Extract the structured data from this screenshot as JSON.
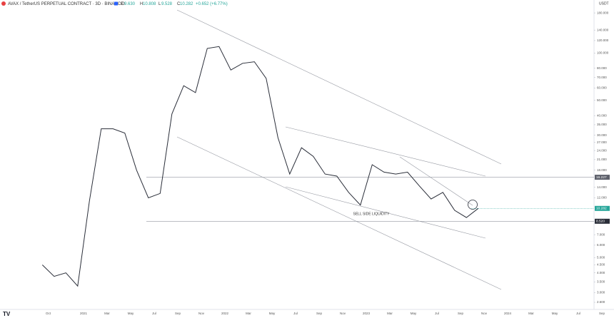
{
  "chart_data": {
    "type": "line",
    "symbol": "AVAX / TetherUS PERPETUAL CONTRACT · 3D · BINANCE",
    "ohlc": [
      {
        "label": "O",
        "value": "9.630"
      },
      {
        "label": "H",
        "value": "10.808"
      },
      {
        "label": "L",
        "value": "9.528"
      },
      {
        "label": "C",
        "value": "10.282"
      }
    ],
    "change": "+0.652 (+6.77%)",
    "currency": "USDT",
    "annotation": "SELL SIDE LIQUIDITY",
    "log_scale": true,
    "x": [
      "2020-09",
      "2020-10",
      "2020-11",
      "2020-12",
      "2021-01",
      "2021-02",
      "2021-03",
      "2021-04",
      "2021-05",
      "2021-06",
      "2021-07",
      "2021-08",
      "2021-09",
      "2021-10",
      "2021-11",
      "2021-12",
      "2022-01",
      "2022-02",
      "2022-03",
      "2022-04",
      "2022-05",
      "2022-06",
      "2022-07",
      "2022-08",
      "2022-09",
      "2022-10",
      "2022-11",
      "2022-12",
      "2023-01",
      "2023-02",
      "2023-03",
      "2023-04",
      "2023-05",
      "2023-06",
      "2023-07",
      "2023-08",
      "2023-09",
      "2023-10"
    ],
    "series": [
      {
        "name": "AVAX",
        "color": "#2a2e39",
        "values": [
          4.5,
          3.8,
          4.0,
          3.3,
          11.5,
          33,
          33,
          31,
          18,
          12,
          12.8,
          41,
          62,
          56,
          107,
          110,
          78,
          86,
          88,
          69,
          29,
          17,
          25,
          22,
          17,
          16.5,
          13,
          10.8,
          19.5,
          17.5,
          17,
          17.5,
          14.3,
          11.8,
          13,
          10,
          9.0,
          10.282
        ]
      }
    ],
    "ylim": [
      2.2,
      200
    ],
    "yticks": [
      {
        "value": 180,
        "label": "180.000"
      },
      {
        "value": 140,
        "label": "140.000"
      },
      {
        "value": 120,
        "label": "120.000"
      },
      {
        "value": 100,
        "label": "100.000"
      },
      {
        "value": 80,
        "label": "80.000"
      },
      {
        "value": 70,
        "label": "70.000"
      },
      {
        "value": 60,
        "label": "60.000"
      },
      {
        "value": 50,
        "label": "50.000"
      },
      {
        "value": 40,
        "label": "40.000"
      },
      {
        "value": 35,
        "label": "35.000"
      },
      {
        "value": 30,
        "label": "30.000"
      },
      {
        "value": 27,
        "label": "27.000"
      },
      {
        "value": 24,
        "label": "24.000"
      },
      {
        "value": 21,
        "label": "21.000"
      },
      {
        "value": 18,
        "label": "18.000"
      },
      {
        "value": 14,
        "label": "14.000"
      },
      {
        "value": 12,
        "label": "12.000"
      },
      {
        "value": 7,
        "label": "7.000"
      },
      {
        "value": 6,
        "label": "6.000"
      },
      {
        "value": 5,
        "label": "5.000"
      },
      {
        "value": 4.5,
        "label": "4.500"
      },
      {
        "value": 4,
        "label": "4.000"
      },
      {
        "value": 3.5,
        "label": "3.500"
      },
      {
        "value": 3,
        "label": "3.000"
      },
      {
        "value": 2.6,
        "label": "2.600"
      }
    ],
    "xticks": [
      {
        "value": "2020-10",
        "label": "Oct"
      },
      {
        "value": "2021-01",
        "label": "2021"
      },
      {
        "value": "2021-03",
        "label": "Mar"
      },
      {
        "value": "2021-05",
        "label": "May"
      },
      {
        "value": "2021-07",
        "label": "Jul"
      },
      {
        "value": "2021-09",
        "label": "Sep"
      },
      {
        "value": "2021-11",
        "label": "Nov"
      },
      {
        "value": "2022-01",
        "label": "2022"
      },
      {
        "value": "2022-03",
        "label": "Mar"
      },
      {
        "value": "2022-05",
        "label": "May"
      },
      {
        "value": "2022-07",
        "label": "Jul"
      },
      {
        "value": "2022-09",
        "label": "Sep"
      },
      {
        "value": "2022-11",
        "label": "Nov"
      },
      {
        "value": "2023-01",
        "label": "2023"
      },
      {
        "value": "2023-03",
        "label": "Mar"
      },
      {
        "value": "2023-05",
        "label": "May"
      },
      {
        "value": "2023-07",
        "label": "Jul"
      },
      {
        "value": "2023-09",
        "label": "Sep"
      },
      {
        "value": "2023-11",
        "label": "Nov"
      },
      {
        "value": "2024-01",
        "label": "2024"
      },
      {
        "value": "2024-03",
        "label": "Mar"
      },
      {
        "value": "2024-05",
        "label": "May"
      },
      {
        "value": "2024-07",
        "label": "Jul"
      },
      {
        "value": "2024-09",
        "label": "Sep"
      }
    ],
    "price_lines": [
      {
        "value": 16.227,
        "label": "16.227",
        "color": "#5d606b"
      },
      {
        "value": 8.52,
        "label": "8.520",
        "color": "#2a2e39"
      }
    ],
    "last_price": {
      "value": 10.282,
      "label": "10.282",
      "color": "#26a69a"
    }
  }
}
